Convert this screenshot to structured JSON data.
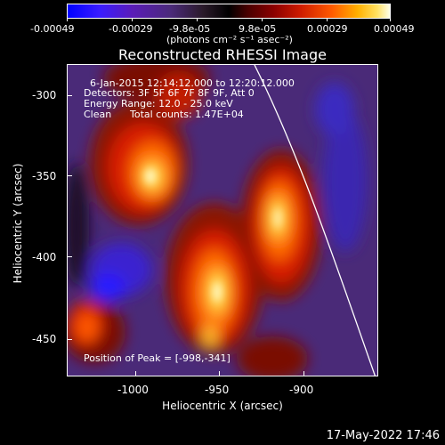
{
  "colorbar": {
    "ticks": [
      "-0.00049",
      "-0.00029",
      "-9.8e-05",
      "9.8e-05",
      "0.00029",
      "0.00049"
    ],
    "unit_label": "(photons cm⁻² s⁻¹ asec⁻²)"
  },
  "title": "Reconstructed RHESSI Image",
  "info": {
    "time": "6-Jan-2015 12:14:12.000 to 12:20:12.000",
    "detectors": "Detectors: 3F 5F 6F 7F 8F 9F, Att 0",
    "energy": "Energy Range: 12.0 - 25.0 keV",
    "method": "Clean",
    "counts": "Total counts: 1.47E+04",
    "peak": "Position of Peak = [-998,-341]"
  },
  "axes": {
    "xlabel": "Heliocentric X (arcsec)",
    "ylabel": "Heliocentric Y (arcsec)",
    "xticks": [
      "-1000",
      "-950",
      "-900"
    ],
    "yticks": [
      "-300",
      "-350",
      "-400",
      "-450"
    ]
  },
  "timestamp": "17-May-2022 17:46",
  "colors": {
    "low": "#0000ff",
    "mid": "#000000",
    "high": "#ffffff",
    "limb": "#ffffff"
  },
  "image_description_values": {
    "color_scale_min": -0.00049,
    "color_scale_max": 0.00049,
    "peak_x": -998,
    "peak_y": -341
  }
}
